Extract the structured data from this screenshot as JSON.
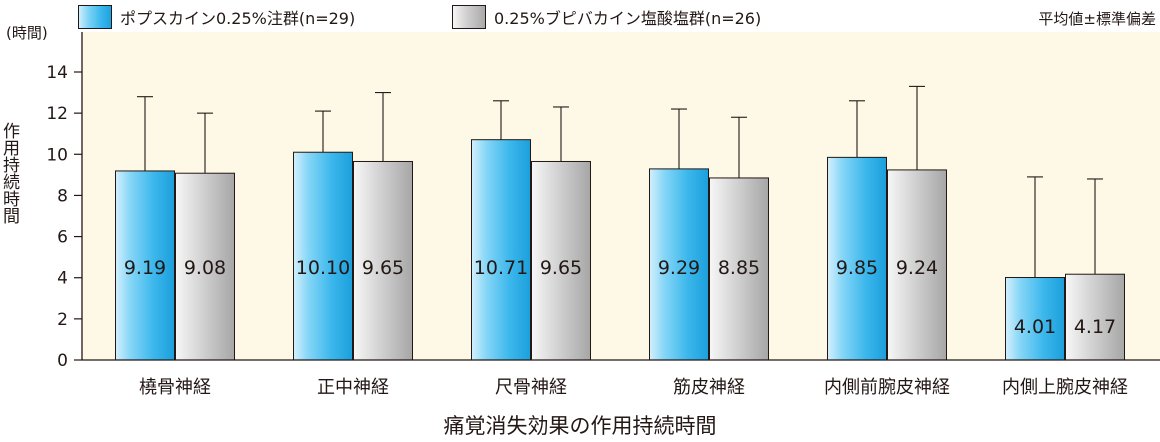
{
  "legend": {
    "series1": "ポプスカイン0.25%注群(n=29)",
    "series2": "0.25%ブピバカイン塩酸塩群(n=26)"
  },
  "note": "平均値±標準偏差",
  "colors": {
    "plot_bg": "#fdf9e6",
    "series1": "#29abe2",
    "series2": "#b3b3b3",
    "axis": "#231815"
  },
  "chart_data": {
    "type": "bar",
    "title": "",
    "xlabel": "痛覚消失効果の作用持続時間",
    "ylabel": "作用持続時間",
    "yunit": "(時間)",
    "ylim": [
      0,
      14
    ],
    "yticks": [
      0,
      2,
      4,
      6,
      8,
      10,
      12,
      14
    ],
    "grid": false,
    "legend_position": "top-left",
    "categories": [
      "橈骨神経",
      "正中神経",
      "尺骨神経",
      "筋皮神経",
      "内側前腕皮神経",
      "内側上腕皮神経"
    ],
    "series": [
      {
        "name": "ポプスカイン0.25%注群(n=29)",
        "values": [
          9.19,
          10.1,
          10.71,
          9.29,
          9.85,
          4.01
        ],
        "labels": [
          "9.19",
          "10.10",
          "10.71",
          "9.29",
          "9.85",
          "4.01"
        ],
        "error_upper": [
          12.8,
          12.1,
          12.6,
          12.2,
          12.6,
          8.9
        ]
      },
      {
        "name": "0.25%ブピバカイン塩酸塩群(n=26)",
        "values": [
          9.08,
          9.65,
          9.65,
          8.85,
          9.24,
          4.17
        ],
        "labels": [
          "9.08",
          "9.65",
          "9.65",
          "8.85",
          "9.24",
          "4.17"
        ],
        "error_upper": [
          12.0,
          13.0,
          12.3,
          11.8,
          13.3,
          8.8
        ]
      }
    ]
  }
}
